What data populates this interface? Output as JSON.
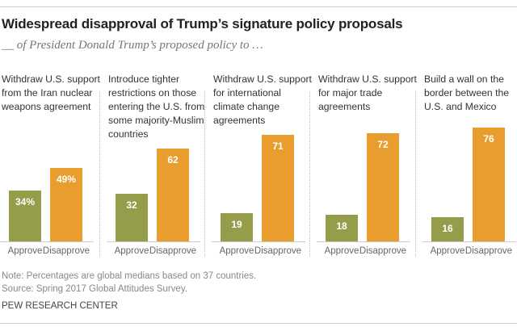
{
  "chart_data": {
    "type": "bar",
    "title": "Widespread disapproval of Trump’s signature policy proposals",
    "subtitle": "__ of President Donald Trump’s proposed policy to …",
    "categories": [
      "Approve",
      "Disapprove"
    ],
    "value_suffix_first": "%",
    "ylim": [
      0,
      100
    ],
    "grid": false,
    "colors": {
      "Approve": "#959c4a",
      "Disapprove": "#e99d2e"
    },
    "panels": [
      {
        "label": "Withdraw U.S. support from the Iran nuclear weapons agreement",
        "values": [
          34,
          49
        ]
      },
      {
        "label": "Introduce tighter restrictions on those entering the U.S. from some majority-Muslim countries",
        "values": [
          32,
          62
        ]
      },
      {
        "label": "Withdraw U.S. support for international climate change agreements",
        "values": [
          19,
          71
        ]
      },
      {
        "label": "Withdraw U.S. support for major trade agreements",
        "values": [
          18,
          72
        ]
      },
      {
        "label": "Build a wall on the border between the U.S. and Mexico",
        "values": [
          16,
          76
        ]
      }
    ]
  },
  "notes": {
    "note": "Note: Percentages are global medians based on 37 countries.",
    "source": "Source: Spring 2017 Global Attitudes Survey.",
    "org": "PEW RESEARCH CENTER"
  }
}
